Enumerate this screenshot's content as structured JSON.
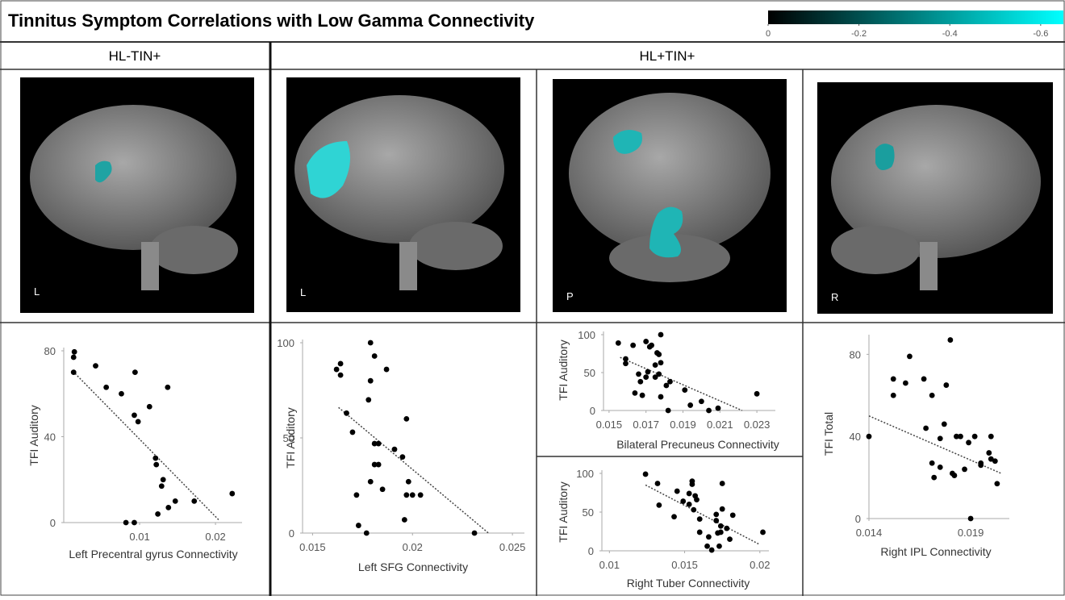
{
  "title": "Tinnitus Symptom Correlations with Low Gamma Connectivity",
  "colorbar": {
    "lim": [
      0,
      -0.65
    ],
    "ticks": [
      0,
      -0.2,
      -0.4,
      -0.6
    ],
    "colors": [
      "#000000",
      "#00ffff"
    ]
  },
  "headers": [
    "HL-TIN+",
    "HL+TIN+"
  ],
  "brain_labels": [
    "L",
    "L",
    "P",
    "R"
  ],
  "chart_data": [
    {
      "type": "scatter",
      "xlabel": "Left Precentral gyrus Connectivity",
      "ylabel": "TFI Auditory",
      "color": "#000000",
      "x": [
        0.0014,
        0.0013,
        0.0013,
        0.0042,
        0.0056,
        0.0076,
        0.0094,
        0.0093,
        0.0098,
        0.0113,
        0.0137,
        0.0121,
        0.0122,
        0.0131,
        0.0129,
        0.0138,
        0.0147,
        0.0124,
        0.0172,
        0.0222,
        0.0082,
        0.0093
      ],
      "values": [
        79.5,
        77,
        70,
        73,
        63,
        60,
        70,
        50,
        47,
        54,
        63,
        30,
        27,
        20,
        17,
        7,
        10,
        4,
        10,
        13.5,
        0,
        0
      ],
      "xlim": [
        0,
        0.0235
      ],
      "ylim": [
        0,
        80
      ],
      "xticks": [
        0.01,
        0.02
      ],
      "yticks": [
        0,
        40,
        80
      ],
      "trendline": {
        "x": [
          0.0012,
          0.0205
        ],
        "y": [
          70.5,
          1
        ]
      }
    },
    {
      "type": "scatter",
      "xlabel": "Left SFG Connectivity",
      "ylabel": "TFI Auditory",
      "color": "#000000",
      "x": [
        0.0162,
        0.0164,
        0.0164,
        0.0179,
        0.0181,
        0.0179,
        0.0178,
        0.0187,
        0.0167,
        0.017,
        0.0191,
        0.0181,
        0.0183,
        0.0195,
        0.0198,
        0.0197,
        0.02,
        0.0204,
        0.0196,
        0.0197,
        0.0181,
        0.0183,
        0.0179,
        0.0185,
        0.0172,
        0.0173,
        0.0177,
        0.0231
      ],
      "values": [
        86,
        89,
        83,
        100,
        93,
        80,
        70,
        86,
        63,
        53,
        44,
        47,
        47,
        40,
        27,
        20,
        20,
        20,
        7,
        60,
        36,
        36,
        27,
        23,
        20,
        4,
        0,
        0
      ],
      "xlim": [
        0.0145,
        0.0256
      ],
      "ylim": [
        0,
        100
      ],
      "xticks": [
        0.015,
        0.02,
        0.025
      ],
      "yticks": [
        0,
        50,
        100
      ],
      "trendline": {
        "x": [
          0.0163,
          0.0238
        ],
        "y": [
          66,
          0
        ]
      }
    },
    {
      "type": "scatter",
      "xlabel": "Bilateral Precuneus Connectivity",
      "ylabel": "TFI Auditory",
      "color": "#000000",
      "x": [
        0.0155,
        0.0159,
        0.0159,
        0.0163,
        0.0166,
        0.0167,
        0.0164,
        0.0168,
        0.017,
        0.0171,
        0.017,
        0.0172,
        0.0173,
        0.0175,
        0.0176,
        0.0177,
        0.0178,
        0.0175,
        0.0177,
        0.0178,
        0.0178,
        0.0181,
        0.0183,
        0.0182,
        0.0191,
        0.0194,
        0.02,
        0.0204,
        0.0209,
        0.023
      ],
      "values": [
        89,
        68,
        62,
        86,
        48,
        38,
        23,
        20,
        44,
        51,
        91,
        84,
        86,
        60,
        76,
        74,
        100,
        44,
        48,
        63,
        18,
        33,
        38,
        0,
        27,
        7,
        12,
        0,
        3,
        22
      ],
      "xlim": [
        0.0147,
        0.024
      ],
      "ylim": [
        0,
        100
      ],
      "xticks": [
        0.015,
        0.017,
        0.019,
        0.021,
        0.023
      ],
      "yticks": [
        0,
        50,
        100
      ],
      "trendline": {
        "x": [
          0.0156,
          0.0222
        ],
        "y": [
          70,
          0
        ]
      }
    },
    {
      "type": "scatter",
      "xlabel": "Right Tuber Connectivity",
      "ylabel": "TFI Auditory",
      "color": "#000000",
      "x": [
        0.0124,
        0.0132,
        0.0133,
        0.0143,
        0.0145,
        0.0149,
        0.0153,
        0.0153,
        0.0155,
        0.0155,
        0.0156,
        0.0157,
        0.016,
        0.0158,
        0.016,
        0.0166,
        0.0165,
        0.0168,
        0.0171,
        0.0171,
        0.0172,
        0.0174,
        0.0174,
        0.0175,
        0.0175,
        0.0178,
        0.018,
        0.0182,
        0.0173,
        0.0202
      ],
      "values": [
        99,
        87,
        59,
        44,
        77,
        64,
        74,
        60,
        90,
        86,
        53,
        71,
        41,
        66,
        24,
        18,
        6,
        1,
        47,
        39,
        23,
        24,
        32,
        54,
        87,
        29,
        15,
        46,
        6,
        24
      ],
      "xlim": [
        0.0095,
        0.0206
      ],
      "ylim": [
        0,
        100
      ],
      "xticks": [
        0.01,
        0.015,
        0.02
      ],
      "yticks": [
        0,
        50,
        100
      ],
      "trendline": {
        "x": [
          0.0124,
          0.02
        ],
        "y": [
          85,
          8
        ]
      }
    },
    {
      "type": "scatter",
      "xlabel": "Right IPL Connectivity",
      "ylabel": "TFI Total",
      "color": "#000000",
      "x": [
        0.014,
        0.0152,
        0.0152,
        0.0158,
        0.016,
        0.0167,
        0.0168,
        0.0171,
        0.0171,
        0.0172,
        0.0175,
        0.0175,
        0.0177,
        0.0178,
        0.018,
        0.0181,
        0.0182,
        0.0183,
        0.0185,
        0.0187,
        0.0189,
        0.0192,
        0.0195,
        0.0195,
        0.0199,
        0.02,
        0.02,
        0.0202,
        0.0203,
        0.019
      ],
      "values": [
        40,
        68,
        60,
        66,
        79,
        68,
        44,
        60,
        27,
        20,
        25,
        39,
        46,
        65,
        87,
        22,
        21,
        40,
        40,
        24,
        37,
        40,
        26,
        27,
        32,
        40,
        29,
        28,
        17,
        0
      ],
      "xlim": [
        0.014,
        0.0209
      ],
      "ylim": [
        0,
        88
      ],
      "xticks": [
        0.014,
        0.019
      ],
      "yticks": [
        0,
        40,
        80
      ],
      "trendline": {
        "x": [
          0.014,
          0.0205
        ],
        "y": [
          50,
          22
        ]
      }
    }
  ]
}
